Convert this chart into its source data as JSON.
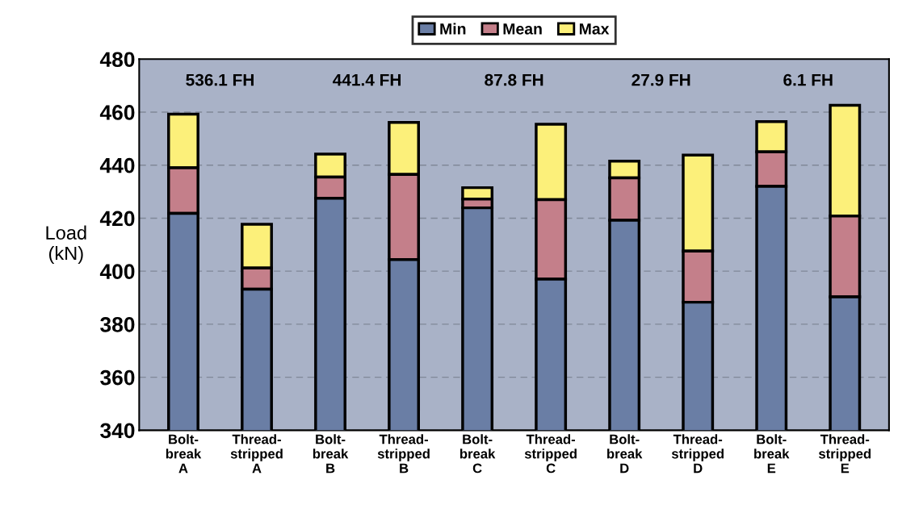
{
  "chart_data": {
    "type": "bar",
    "stacked": true,
    "ylabel": "Load\n(kN)",
    "categories": [
      "Bolt-\nbreak\nA",
      "Thread-\nstripped\nA",
      "Bolt-\nbreak\nB",
      "Thread-\nstripped\nB",
      "Bolt-\nbreak\nC",
      "Thread-\nstripped\nC",
      "Bolt-\nbreak\nD",
      "Thread-\nstripped\nD",
      "Bolt-\nbreak\nE",
      "Thread-\nstripped\nE"
    ],
    "series": [
      {
        "name": "Min",
        "color": "#6a7ea5",
        "values": [
          421.8,
          393.2,
          427.5,
          404.4,
          423.9,
          397.0,
          419.2,
          388.3,
          432.0,
          390.3
        ]
      },
      {
        "name": "Mean",
        "color": "#c47f8a",
        "base": [
          421.8,
          393.2,
          427.5,
          404.4,
          423.9,
          397.0,
          419.2,
          388.3,
          432.0,
          390.3
        ],
        "values": [
          17.2,
          8.0,
          8.0,
          32.1,
          3.3,
          30.0,
          16.0,
          19.3,
          13.0,
          30.5
        ]
      },
      {
        "name": "Max",
        "color": "#fcf07a",
        "base": [
          439.0,
          401.2,
          435.5,
          436.5,
          427.2,
          427.0,
          435.2,
          407.6,
          445.0,
          420.8
        ],
        "values": [
          20.2,
          16.5,
          8.7,
          19.6,
          4.3,
          28.4,
          6.3,
          36.2,
          11.4,
          41.8
        ]
      }
    ],
    "annotations": [
      "536.1 FH",
      "441.4 FH",
      "87.8 FH",
      "27.9 FH",
      "6.1 FH"
    ],
    "ylim": [
      340,
      480
    ],
    "yticks": [
      340,
      360,
      380,
      400,
      420,
      440,
      460,
      480
    ],
    "grid": "y",
    "legend": "top"
  }
}
